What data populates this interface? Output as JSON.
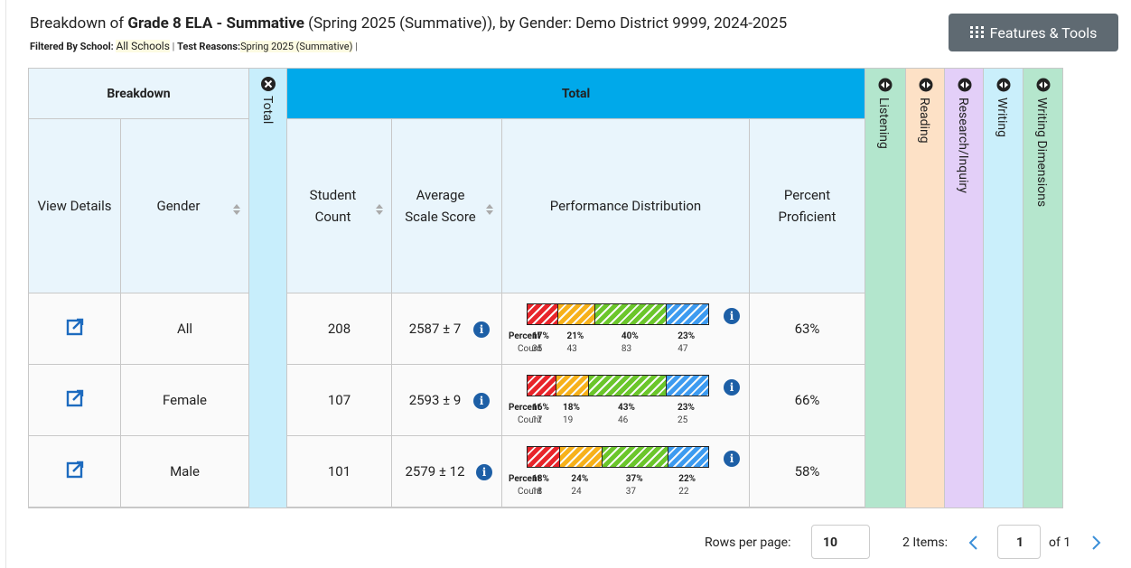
{
  "header": {
    "title_parts": [
      "Breakdown of ",
      "Grade 8 ELA - Summative",
      " (Spring 2025 (Summative)), by Gender: Demo District 9999, 2024-2025"
    ],
    "filter": {
      "label": "Filtered By",
      "school_label": "School:",
      "school": "All Schools",
      "reasons_label": "Test Reasons:",
      "reasons": "Spring 2025 (Summative)",
      "separator": "|"
    },
    "button": "Features & Tools"
  },
  "table": {
    "group_headers": {
      "breakdown": "Breakdown",
      "total_collapsed": "Total",
      "total": "Total"
    },
    "columns": [
      "View Details",
      "Gender",
      "Student Count",
      "Average Scale Score",
      "Performance Distribution",
      "Percent Proficient"
    ],
    "side_columns": [
      "Listening",
      "Reading",
      "Research/Inquiry",
      "Writing",
      "Writing Dimensions"
    ],
    "dist_labels": {
      "percent": "Percent",
      "count": "Count"
    },
    "rows": [
      {
        "gender": "All",
        "student_count": "208",
        "scale_score": "2587 ± 7",
        "percents": [
          "17%",
          "21%",
          "40%",
          "23%"
        ],
        "counts": [
          "35",
          "43",
          "83",
          "47"
        ],
        "proficient": "63%"
      },
      {
        "gender": "Female",
        "student_count": "107",
        "scale_score": "2593 ± 9",
        "percents": [
          "16%",
          "18%",
          "43%",
          "23%"
        ],
        "counts": [
          "17",
          "19",
          "46",
          "25"
        ],
        "proficient": "66%"
      },
      {
        "gender": "Male",
        "student_count": "101",
        "scale_score": "2579 ± 12",
        "percents": [
          "18%",
          "24%",
          "37%",
          "22%"
        ],
        "counts": [
          "18",
          "24",
          "37",
          "22"
        ],
        "proficient": "58%"
      }
    ]
  },
  "pagination": {
    "rows_label": "Rows per page:",
    "rows_value": "10",
    "items": "2 Items:",
    "page": "1",
    "of": "of 1"
  }
}
